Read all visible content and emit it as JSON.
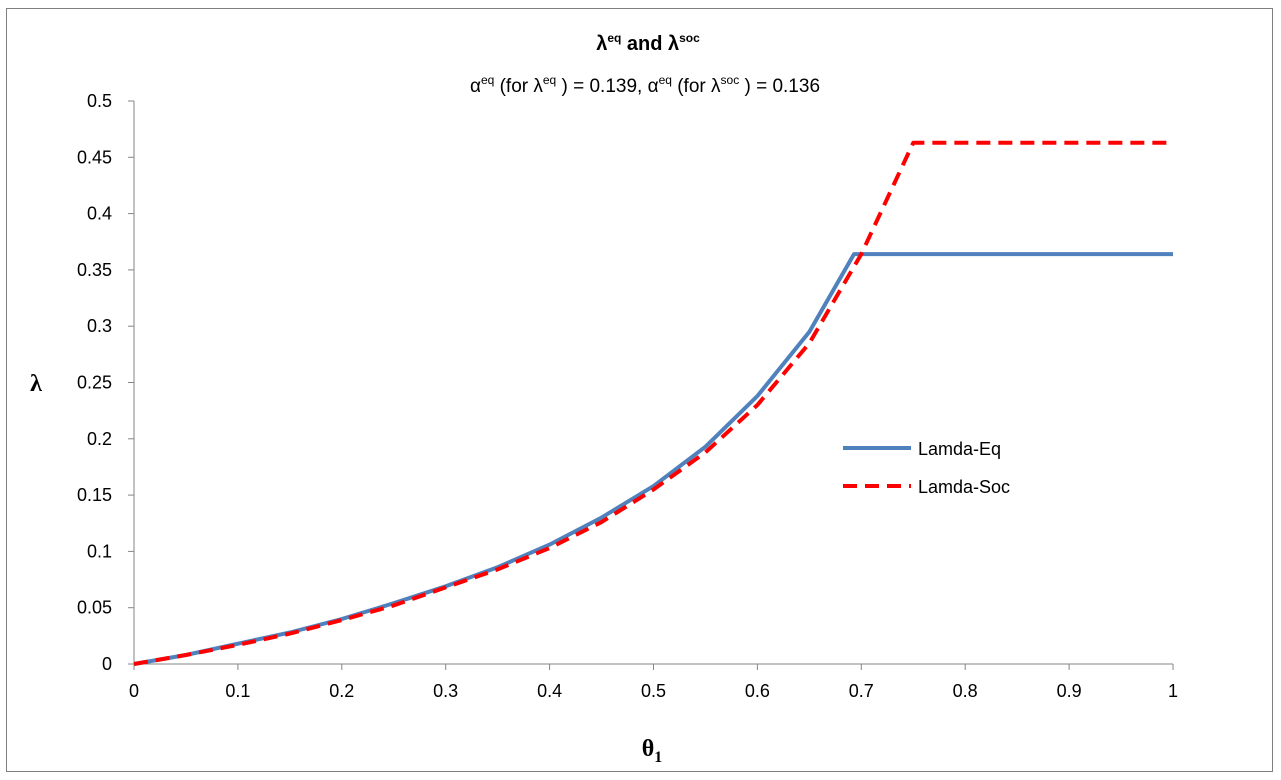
{
  "chart_data": {
    "type": "line",
    "title": {
      "main_prefix": "λ",
      "main_sup1": "eq",
      "main_mid": " and λ",
      "main_sup2": "soc",
      "sub_p1": "α",
      "sub_s1": "eq",
      "sub_p2": " (for λ",
      "sub_s2": "eq",
      "sub_p3": " ) = 0.139, α",
      "sub_s3": "eq",
      "sub_p4": " (for λ",
      "sub_s4": "soc",
      "sub_p5": " ) = 0.136"
    },
    "xlabel_main": "θ",
    "xlabel_sub": "1",
    "ylabel": "λ",
    "xlim": [
      0,
      1
    ],
    "ylim": [
      0,
      0.5
    ],
    "xticks": [
      "0",
      "0.1",
      "0.2",
      "0.3",
      "0.4",
      "0.5",
      "0.6",
      "0.7",
      "0.8",
      "0.9",
      "1"
    ],
    "yticks": [
      "0",
      "0.05",
      "0.1",
      "0.15",
      "0.2",
      "0.25",
      "0.3",
      "0.35",
      "0.4",
      "0.45",
      "0.5"
    ],
    "grid": false,
    "legend_position": "center-right",
    "series": [
      {
        "name": "Lamda-Eq",
        "color": "#4f81bd",
        "style": "solid",
        "x": [
          0,
          0.05,
          0.1,
          0.15,
          0.2,
          0.25,
          0.3,
          0.35,
          0.4,
          0.45,
          0.5,
          0.55,
          0.6,
          0.65,
          0.693,
          0.75,
          0.8,
          0.85,
          0.9,
          0.95,
          1.0
        ],
        "y": [
          0,
          0.008,
          0.018,
          0.028,
          0.04,
          0.054,
          0.069,
          0.086,
          0.106,
          0.13,
          0.158,
          0.193,
          0.238,
          0.295,
          0.364,
          0.364,
          0.364,
          0.364,
          0.364,
          0.364,
          0.364
        ]
      },
      {
        "name": "Lamda-Soc",
        "color": "#ff0000",
        "style": "dashed",
        "x": [
          0,
          0.05,
          0.1,
          0.15,
          0.2,
          0.25,
          0.3,
          0.35,
          0.4,
          0.45,
          0.5,
          0.55,
          0.6,
          0.65,
          0.7,
          0.75,
          0.8,
          0.85,
          0.9,
          0.95,
          1.0
        ],
        "y": [
          0,
          0.008,
          0.017,
          0.027,
          0.039,
          0.052,
          0.068,
          0.084,
          0.103,
          0.126,
          0.155,
          0.188,
          0.23,
          0.285,
          0.364,
          0.463,
          0.463,
          0.463,
          0.463,
          0.463,
          0.463
        ]
      }
    ]
  }
}
